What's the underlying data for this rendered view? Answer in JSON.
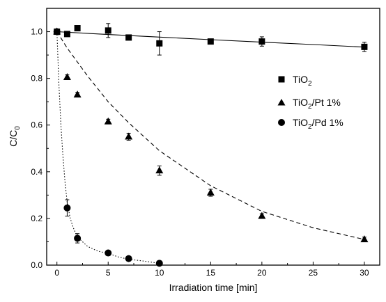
{
  "chart_data": {
    "type": "scatter",
    "xlabel": "Irradiation time [min]",
    "ylabel": {
      "main": "C/C",
      "sub": "0"
    },
    "xlim": [
      -1,
      31.5
    ],
    "ylim": [
      0.0,
      1.1
    ],
    "xticks": [
      0,
      5,
      10,
      15,
      20,
      25,
      30
    ],
    "yticks": [
      0.0,
      0.2,
      0.4,
      0.6,
      0.8,
      1.0
    ],
    "ytick_labels": [
      "0.0",
      "0.2",
      "0.4",
      "0.6",
      "0.8",
      "1.0"
    ],
    "grid": false,
    "legend_position": "right",
    "series": [
      {
        "name": "TiO2",
        "label_parts": [
          "TiO",
          "2",
          ""
        ],
        "marker": "square",
        "fit": "solid",
        "x": [
          0,
          1,
          2,
          5,
          7,
          10,
          15,
          20,
          30
        ],
        "y": [
          1.0,
          0.99,
          1.015,
          1.005,
          0.975,
          0.95,
          0.958,
          0.958,
          0.935
        ],
        "err": [
          0.01,
          0.01,
          0.008,
          0.03,
          0.008,
          0.05,
          0.008,
          0.02,
          0.02
        ],
        "fit_curve": {
          "x": [
            0,
            5,
            10,
            15,
            20,
            25,
            30
          ],
          "y": [
            1.0,
            0.988,
            0.977,
            0.966,
            0.955,
            0.945,
            0.934
          ]
        }
      },
      {
        "name": "TiO2/Pt 1%",
        "label_parts": [
          "TiO",
          "2",
          "/Pt 1%"
        ],
        "marker": "triangle",
        "fit": "dashed",
        "x": [
          0,
          1,
          2,
          5,
          7,
          10,
          15,
          20,
          30
        ],
        "y": [
          1.0,
          0.805,
          0.73,
          0.615,
          0.55,
          0.405,
          0.31,
          0.21,
          0.11
        ],
        "err": [
          0.005,
          0.01,
          0.01,
          0.01,
          0.015,
          0.02,
          0.015,
          0.01,
          0.01
        ],
        "fit_curve": {
          "x": [
            0,
            1,
            2,
            3,
            5,
            7,
            10,
            13,
            15,
            20,
            25,
            30
          ],
          "y": [
            1.0,
            0.93,
            0.87,
            0.81,
            0.7,
            0.61,
            0.49,
            0.4,
            0.34,
            0.23,
            0.16,
            0.11
          ]
        }
      },
      {
        "name": "TiO2/Pd 1%",
        "label_parts": [
          "TiO",
          "2",
          "/Pd 1%"
        ],
        "marker": "circle",
        "fit": "dotted",
        "x": [
          0,
          1,
          2,
          5,
          7,
          10
        ],
        "y": [
          1.0,
          0.245,
          0.115,
          0.052,
          0.028,
          0.008
        ],
        "err": [
          0.01,
          0.035,
          0.02,
          0.005,
          0.005,
          0.005
        ],
        "fit_curve": {
          "x": [
            0,
            0.2,
            0.4,
            0.6,
            0.8,
            1.0,
            1.3,
            1.6,
            2,
            3,
            4,
            5,
            6,
            7,
            8,
            9,
            10
          ],
          "y": [
            1.0,
            0.77,
            0.59,
            0.46,
            0.35,
            0.27,
            0.2,
            0.16,
            0.12,
            0.08,
            0.06,
            0.05,
            0.035,
            0.025,
            0.02,
            0.014,
            0.008
          ]
        }
      }
    ]
  }
}
